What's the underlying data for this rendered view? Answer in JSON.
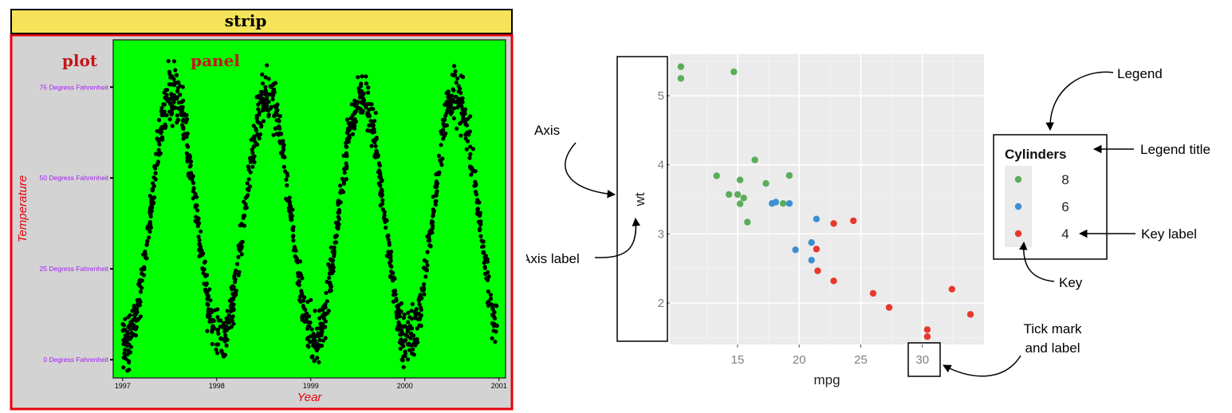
{
  "colors": {
    "strip_fill": "#f5e35a",
    "plot_bg": "#d3d3d3",
    "panel_fill": "#00ff00",
    "frame_red": "#e8000b",
    "label_red": "#c4161c",
    "tick_purple": "#a020f0",
    "gg_bg": "#ebebeb",
    "cyl8": "#5aad5a",
    "cyl6": "#3d8fd1",
    "cyl4": "#e8372c"
  },
  "left_figure": {
    "strip_label": "strip",
    "plot_label": "plot",
    "panel_label": "panel",
    "chart_data": {
      "type": "scatter",
      "xlabel": "Year",
      "ylabel": "Temperature",
      "xticks": [
        "1997",
        "1998",
        "1999",
        "2000",
        "2001"
      ],
      "yticks": [
        "0 Degress Fahrenheit",
        "25 Degress Fahrenheit",
        "50 Degress Fahrenheit",
        "75 Degress Fahrenheit"
      ],
      "xlim": [
        1996.9,
        2001.07
      ],
      "ylim": [
        -5,
        88
      ]
    }
  },
  "right_figure": {
    "chart_data": {
      "type": "scatter",
      "xlabel": "mpg",
      "ylabel": "wt",
      "xticks": [
        15,
        20,
        25,
        30
      ],
      "yticks": [
        2,
        3,
        4,
        5
      ],
      "xlim": [
        9.5,
        35
      ],
      "ylim": [
        1.4,
        5.6
      ],
      "legend": {
        "title": "Cylinders",
        "placement": "right"
      },
      "series": [
        {
          "name": "8",
          "x": [
            18.7,
            14.3,
            16.4,
            17.3,
            15.2,
            10.4,
            10.4,
            14.7,
            15.5,
            15.2,
            13.3,
            19.2,
            15.8,
            15.0
          ],
          "y": [
            3.44,
            3.57,
            4.07,
            3.73,
            3.78,
            5.25,
            5.42,
            5.345,
            3.52,
            3.435,
            3.84,
            3.845,
            3.17,
            3.57
          ]
        },
        {
          "name": "6",
          "x": [
            21.0,
            21.0,
            21.4,
            18.1,
            19.2,
            17.8,
            19.7
          ],
          "y": [
            2.62,
            2.875,
            3.215,
            3.46,
            3.44,
            3.44,
            2.77
          ]
        },
        {
          "name": "4",
          "x": [
            22.8,
            24.4,
            22.8,
            32.4,
            30.4,
            33.9,
            21.5,
            27.3,
            26.0,
            30.4,
            21.4
          ],
          "y": [
            2.32,
            3.19,
            3.15,
            2.2,
            1.615,
            1.835,
            2.465,
            1.935,
            2.14,
            1.513,
            2.78
          ]
        }
      ]
    },
    "annotations": {
      "axis": "Axis",
      "axis_label": "Axis label",
      "legend": "Legend",
      "legend_title": "Legend title",
      "key_label": "Key label",
      "key": "Key",
      "tick_line1": "Tick mark",
      "tick_line2": "and label"
    }
  }
}
